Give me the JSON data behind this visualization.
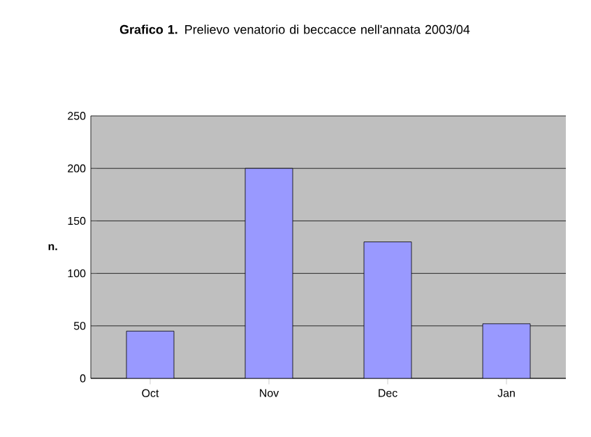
{
  "chart_data": {
    "type": "bar",
    "title": "**Grafico 1.** Prelievo venatorio di beccacce nell'annata 2003/04",
    "ylabel": "n.",
    "categories": [
      "Oct",
      "Nov",
      "Dec",
      "Jan"
    ],
    "values": [
      45,
      200,
      130,
      52
    ],
    "color": "#9999ff",
    "ylim": [
      0,
      250
    ],
    "yticks": [
      0,
      50,
      100,
      150,
      200,
      250
    ],
    "grid": "y"
  }
}
